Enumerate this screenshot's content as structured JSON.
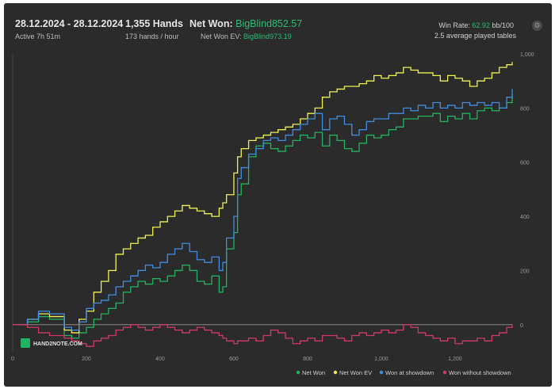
{
  "header": {
    "date_range": "28.12.2024 - 28.12.2024",
    "active_time": "Active 7h 51m",
    "hands": "1,355 Hands",
    "hands_rate": "173 hands / hour",
    "net_won_label": "Net Won:",
    "net_won_value": "BigBlind852.57",
    "net_won_ev_label": "Net Won  EV:",
    "net_won_ev_value": "BigBlind973.19",
    "win_rate_label": "Win Rate:",
    "win_rate_value": "62.92",
    "win_rate_unit": "bb/100",
    "avg_tables": "2.5 average played tables"
  },
  "logo": {
    "text": "HAND2NOTE.COM"
  },
  "icons": {
    "settings": "gear-icon",
    "logo": "hand2note-logo-icon"
  },
  "colors": {
    "net_won": "#22b35e",
    "net_won_ev": "#f0f055",
    "won_at_showdown": "#3f8ce0",
    "won_without_showdown": "#d23a66",
    "zero_line": "#9a9a9a"
  },
  "chart_data": {
    "type": "line",
    "xlabel": "",
    "ylabel": "",
    "xlim": [
      0,
      1355
    ],
    "ylim": [
      -100,
      1000
    ],
    "x_ticks": [
      "0",
      "200",
      "400",
      "600",
      "800",
      "1,000",
      "1,200"
    ],
    "y_ticks": [
      "1,000",
      "800",
      "600",
      "400",
      "200",
      "0"
    ],
    "legend_position": "bottom-right",
    "grid": false,
    "series": [
      {
        "name": "Net Won",
        "color": "#22b35e",
        "x": [
          0,
          40,
          70,
          100,
          140,
          160,
          180,
          200,
          220,
          240,
          260,
          280,
          300,
          320,
          340,
          360,
          380,
          400,
          420,
          440,
          460,
          480,
          500,
          520,
          540,
          560,
          570,
          580,
          600,
          610,
          620,
          640,
          660,
          680,
          700,
          720,
          740,
          760,
          780,
          800,
          820,
          840,
          860,
          880,
          900,
          920,
          940,
          960,
          980,
          1000,
          1020,
          1040,
          1060,
          1080,
          1100,
          1120,
          1140,
          1160,
          1180,
          1200,
          1220,
          1240,
          1260,
          1280,
          1300,
          1320,
          1340,
          1355
        ],
        "y": [
          0,
          10,
          30,
          20,
          -40,
          -50,
          -30,
          -10,
          20,
          40,
          60,
          80,
          120,
          140,
          160,
          150,
          170,
          160,
          180,
          200,
          220,
          200,
          160,
          150,
          180,
          120,
          140,
          280,
          340,
          480,
          520,
          620,
          660,
          670,
          650,
          640,
          660,
          680,
          700,
          690,
          710,
          660,
          700,
          680,
          650,
          640,
          670,
          700,
          690,
          700,
          720,
          730,
          760,
          760,
          770,
          770,
          780,
          750,
          770,
          760,
          780,
          760,
          790,
          800,
          790,
          800,
          820,
          850
        ]
      },
      {
        "name": "Net Won  EV",
        "color": "#f0f055",
        "x": [
          0,
          40,
          70,
          100,
          140,
          160,
          180,
          200,
          220,
          240,
          260,
          280,
          300,
          320,
          340,
          360,
          380,
          400,
          420,
          440,
          460,
          480,
          500,
          520,
          540,
          560,
          570,
          580,
          600,
          610,
          620,
          640,
          660,
          680,
          700,
          720,
          740,
          760,
          780,
          800,
          820,
          840,
          860,
          880,
          900,
          920,
          940,
          960,
          980,
          1000,
          1020,
          1040,
          1060,
          1080,
          1100,
          1120,
          1140,
          1160,
          1180,
          1200,
          1220,
          1240,
          1260,
          1280,
          1300,
          1320,
          1340,
          1355
        ],
        "y": [
          0,
          20,
          40,
          30,
          -20,
          -30,
          20,
          50,
          120,
          160,
          200,
          260,
          280,
          300,
          320,
          330,
          360,
          380,
          400,
          420,
          440,
          430,
          420,
          410,
          400,
          430,
          450,
          480,
          560,
          620,
          650,
          680,
          690,
          700,
          710,
          720,
          730,
          740,
          760,
          780,
          800,
          840,
          860,
          870,
          880,
          880,
          890,
          900,
          920,
          910,
          920,
          930,
          950,
          940,
          930,
          930,
          920,
          900,
          920,
          910,
          900,
          880,
          900,
          910,
          930,
          950,
          960,
          970
        ]
      },
      {
        "name": "Won at showdown",
        "color": "#3f8ce0",
        "x": [
          0,
          40,
          70,
          100,
          140,
          160,
          180,
          200,
          220,
          240,
          260,
          280,
          300,
          320,
          340,
          360,
          380,
          400,
          420,
          440,
          460,
          480,
          500,
          520,
          540,
          560,
          570,
          580,
          600,
          610,
          620,
          640,
          660,
          680,
          700,
          720,
          740,
          760,
          780,
          800,
          820,
          840,
          860,
          880,
          900,
          920,
          940,
          960,
          980,
          1000,
          1020,
          1040,
          1060,
          1080,
          1100,
          1120,
          1140,
          1160,
          1180,
          1200,
          1220,
          1240,
          1260,
          1280,
          1300,
          1320,
          1340,
          1355
        ],
        "y": [
          0,
          20,
          50,
          40,
          -10,
          -20,
          10,
          60,
          80,
          90,
          110,
          140,
          160,
          180,
          200,
          220,
          210,
          230,
          260,
          280,
          300,
          270,
          240,
          230,
          250,
          200,
          230,
          320,
          400,
          540,
          580,
          630,
          650,
          680,
          690,
          680,
          700,
          720,
          740,
          760,
          780,
          720,
          760,
          770,
          740,
          700,
          720,
          750,
          760,
          760,
          780,
          780,
          800,
          790,
          810,
          800,
          820,
          800,
          810,
          800,
          820,
          810,
          820,
          810,
          820,
          800,
          840,
          870
        ]
      },
      {
        "name": "Won without showdown",
        "color": "#d23a66",
        "x": [
          0,
          40,
          70,
          100,
          140,
          160,
          180,
          200,
          220,
          240,
          260,
          280,
          300,
          320,
          340,
          360,
          380,
          400,
          420,
          440,
          460,
          480,
          500,
          520,
          540,
          560,
          570,
          580,
          600,
          610,
          620,
          640,
          660,
          680,
          700,
          720,
          740,
          760,
          780,
          800,
          820,
          840,
          860,
          880,
          900,
          920,
          940,
          960,
          980,
          1000,
          1020,
          1040,
          1060,
          1080,
          1100,
          1120,
          1140,
          1160,
          1180,
          1200,
          1220,
          1240,
          1260,
          1280,
          1300,
          1320,
          1340,
          1355
        ],
        "y": [
          0,
          -10,
          -30,
          -40,
          -50,
          -60,
          -70,
          -80,
          -60,
          -50,
          -40,
          -20,
          -10,
          0,
          -10,
          -20,
          -10,
          0,
          -10,
          -20,
          -30,
          -20,
          -10,
          -20,
          -30,
          -40,
          -50,
          -60,
          -70,
          -60,
          -60,
          -50,
          -60,
          -40,
          -20,
          -30,
          -50,
          -70,
          -60,
          -50,
          -60,
          -40,
          -40,
          -50,
          -60,
          -40,
          -30,
          -40,
          -30,
          -20,
          -30,
          -20,
          0,
          -10,
          -30,
          -40,
          -50,
          -60,
          -50,
          -70,
          -60,
          -60,
          -50,
          -60,
          -40,
          -30,
          -10,
          0
        ]
      }
    ]
  }
}
